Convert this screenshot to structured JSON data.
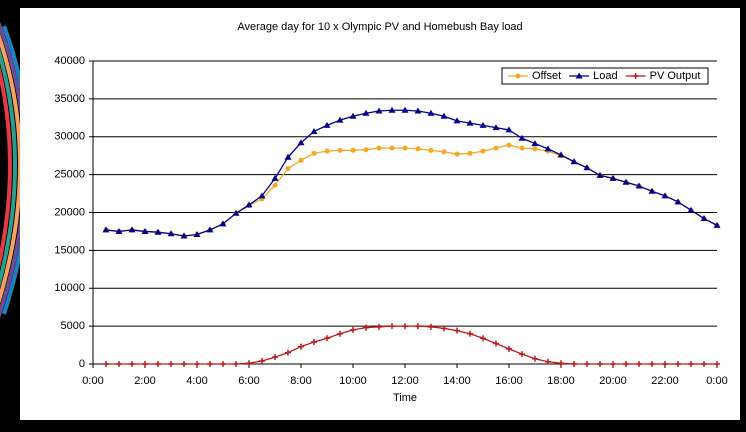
{
  "chart_data": {
    "type": "line",
    "title": "Average day for 10 x Olympic PV and Homebush Bay load",
    "x_label": "Time",
    "x": [
      0.5,
      1,
      1.5,
      2,
      2.5,
      3,
      3.5,
      4,
      4.5,
      5,
      5.5,
      6,
      6.5,
      7,
      7.5,
      8,
      8.5,
      9,
      9.5,
      10,
      10.5,
      11,
      11.5,
      12,
      12.5,
      13,
      13.5,
      14,
      14.5,
      15,
      15.5,
      16,
      16.5,
      17,
      17.5,
      18,
      18.5,
      19,
      19.5,
      20,
      20.5,
      21,
      21.5,
      22,
      22.5,
      23,
      23.5,
      24
    ],
    "series": [
      {
        "name": "Offset",
        "color": "#f5a623",
        "values": [
          17700,
          17500,
          17700,
          17500,
          17400,
          17200,
          16900,
          17100,
          17700,
          18500,
          19900,
          20900,
          21800,
          23600,
          25800,
          26900,
          27800,
          28100,
          28200,
          28200,
          28300,
          28500,
          28500,
          28500,
          28400,
          28200,
          28000,
          27700,
          27800,
          28100,
          28500,
          28900,
          28500,
          28400,
          28100,
          27500,
          26700,
          25900,
          24900,
          24500,
          24000,
          23500,
          22800,
          22200,
          21400,
          20300,
          19200,
          18300
        ]
      },
      {
        "name": "Load",
        "color": "#00008b",
        "values": [
          17700,
          17500,
          17700,
          17500,
          17400,
          17200,
          16900,
          17100,
          17700,
          18500,
          19900,
          21000,
          22200,
          24500,
          27300,
          29200,
          30700,
          31500,
          32200,
          32700,
          33100,
          33400,
          33500,
          33500,
          33400,
          33100,
          32700,
          32100,
          31800,
          31500,
          31200,
          30900,
          29800,
          29100,
          28400,
          27600,
          26700,
          25900,
          24900,
          24500,
          24000,
          23500,
          22800,
          22200,
          21400,
          20300,
          19200,
          18300
        ]
      },
      {
        "name": "PV Output",
        "color": "#c0181b",
        "values": [
          0,
          0,
          0,
          0,
          0,
          0,
          0,
          0,
          0,
          0,
          0,
          100,
          400,
          900,
          1500,
          2300,
          2900,
          3400,
          4000,
          4500,
          4800,
          4900,
          5000,
          5000,
          5000,
          4900,
          4700,
          4400,
          4000,
          3400,
          2700,
          2000,
          1300,
          700,
          300,
          100,
          0,
          0,
          0,
          0,
          0,
          0,
          0,
          0,
          0,
          0,
          0,
          0
        ]
      }
    ],
    "xlim": [
      0,
      24
    ],
    "xticks": [
      {
        "value": 0,
        "label": "0:00"
      },
      {
        "value": 2,
        "label": "2:00"
      },
      {
        "value": 4,
        "label": "4:00"
      },
      {
        "value": 6,
        "label": "6:00"
      },
      {
        "value": 8,
        "label": "8:00"
      },
      {
        "value": 10,
        "label": "10:00"
      },
      {
        "value": 12,
        "label": "12:00"
      },
      {
        "value": 14,
        "label": "14:00"
      },
      {
        "value": 16,
        "label": "16:00"
      },
      {
        "value": 18,
        "label": "18:00"
      },
      {
        "value": 20,
        "label": "20:00"
      },
      {
        "value": 22,
        "label": "22:00"
      },
      {
        "value": 24,
        "label": "0:00"
      }
    ],
    "ylim": [
      0,
      40000
    ],
    "yticks": [
      0,
      5000,
      10000,
      15000,
      20000,
      25000,
      30000,
      35000,
      40000
    ],
    "grid": true,
    "legend": "top-right"
  }
}
